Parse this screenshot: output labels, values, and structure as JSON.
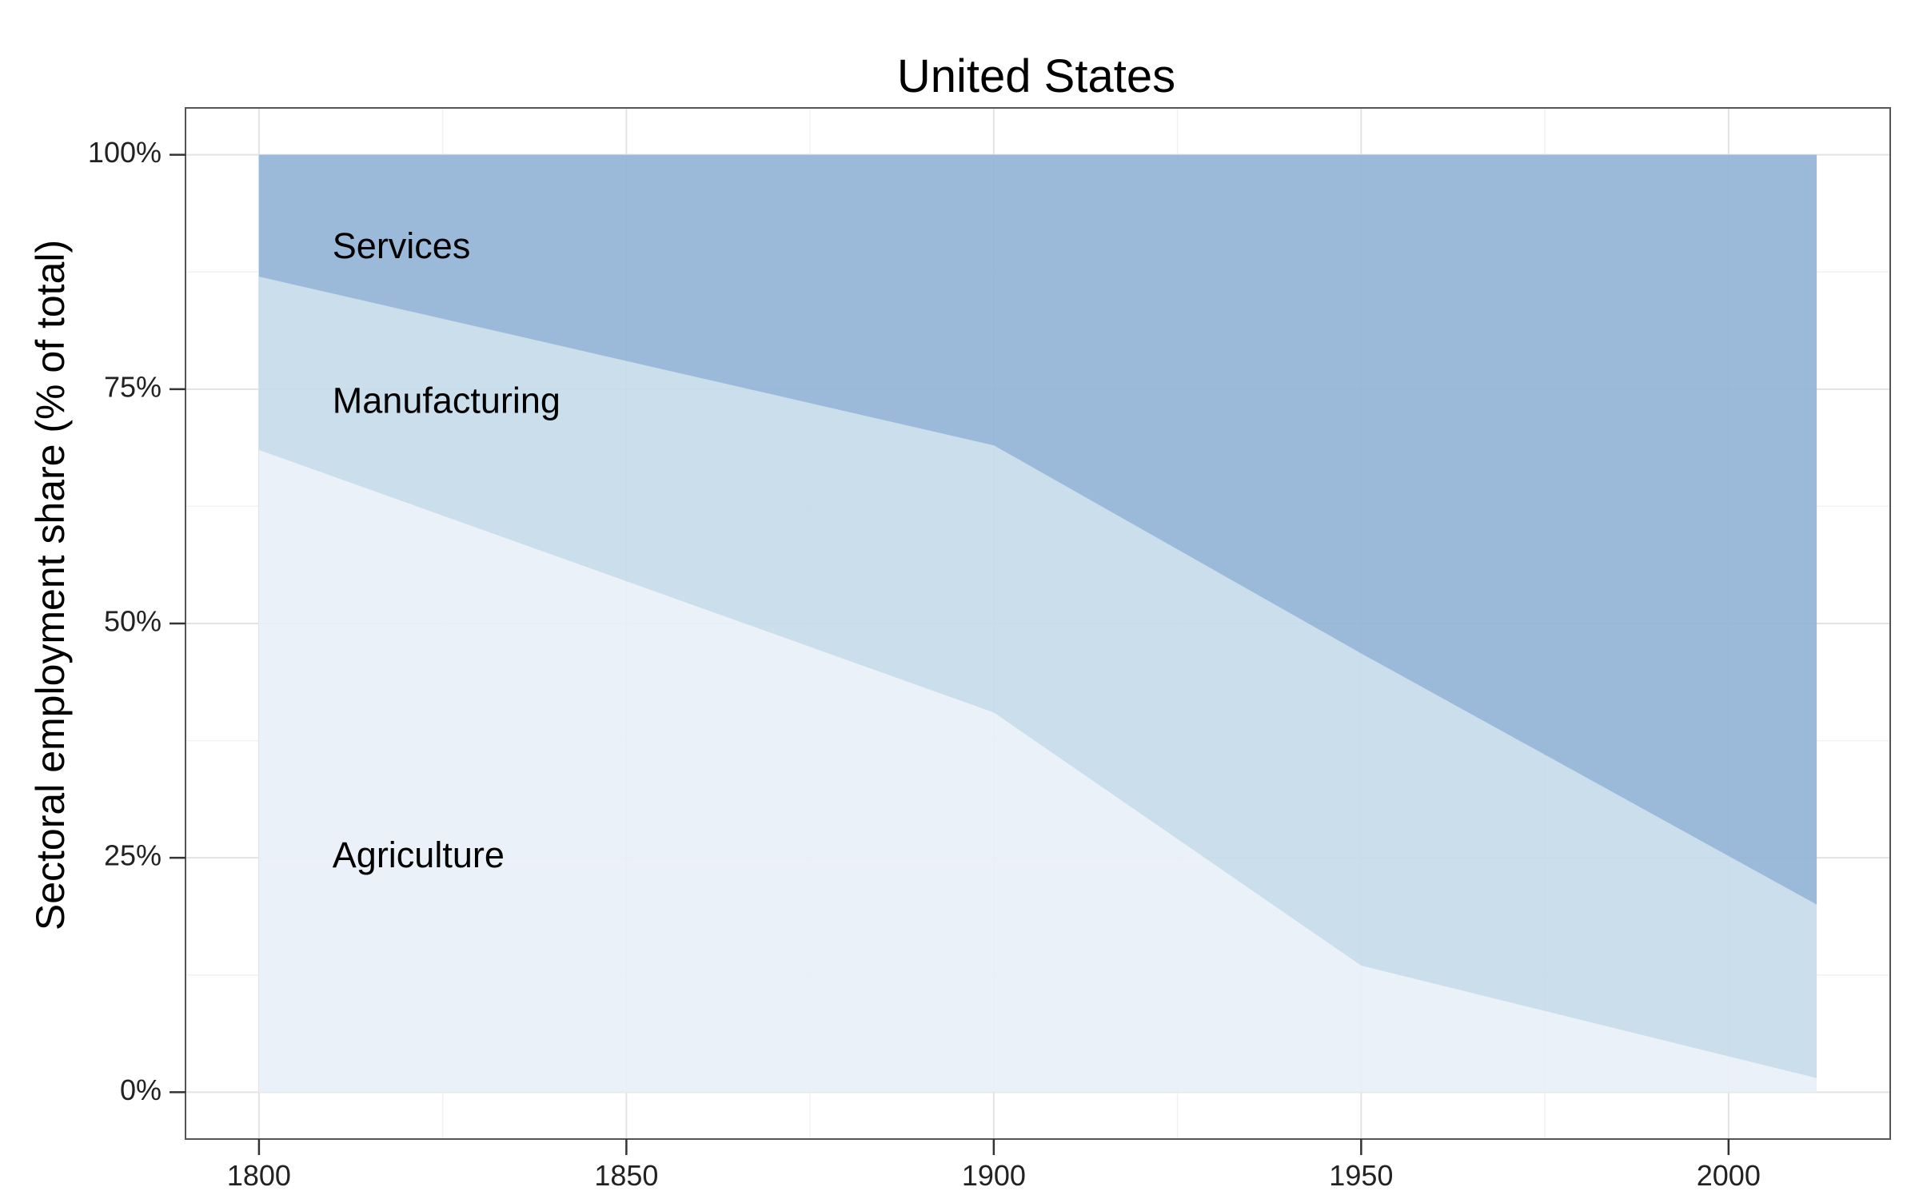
{
  "chart_data": {
    "type": "area",
    "title": "United States",
    "xlabel": "",
    "ylabel": "Sectoral employment share (% of total)",
    "x": [
      1800,
      1900,
      1950,
      2012
    ],
    "xlim": [
      1790,
      2022
    ],
    "ylim": [
      -5,
      105
    ],
    "x_ticks": [
      1800,
      1850,
      1900,
      1950,
      2000
    ],
    "y_ticks": [
      0,
      25,
      50,
      75,
      100
    ],
    "y_tick_labels": [
      "0%",
      "25%",
      "50%",
      "75%",
      "100%"
    ],
    "grid": true,
    "stacked": true,
    "series": [
      {
        "name": "Agriculture",
        "values": [
          68.5,
          40.5,
          13.5,
          1.5
        ],
        "color": "#e9f0f8"
      },
      {
        "name": "Manufacturing",
        "values": [
          18.5,
          28.5,
          33.3,
          18.5
        ],
        "color": "#c6dcea"
      },
      {
        "name": "Services",
        "values": [
          13.0,
          31.0,
          53.2,
          80.0
        ],
        "color": "#93b5d7"
      }
    ],
    "annotations": [
      {
        "text": "Services",
        "x": 1810,
        "y": 90
      },
      {
        "text": "Manufacturing",
        "x": 1810,
        "y": 73.5
      },
      {
        "text": "Agriculture",
        "x": 1810,
        "y": 25
      }
    ]
  }
}
